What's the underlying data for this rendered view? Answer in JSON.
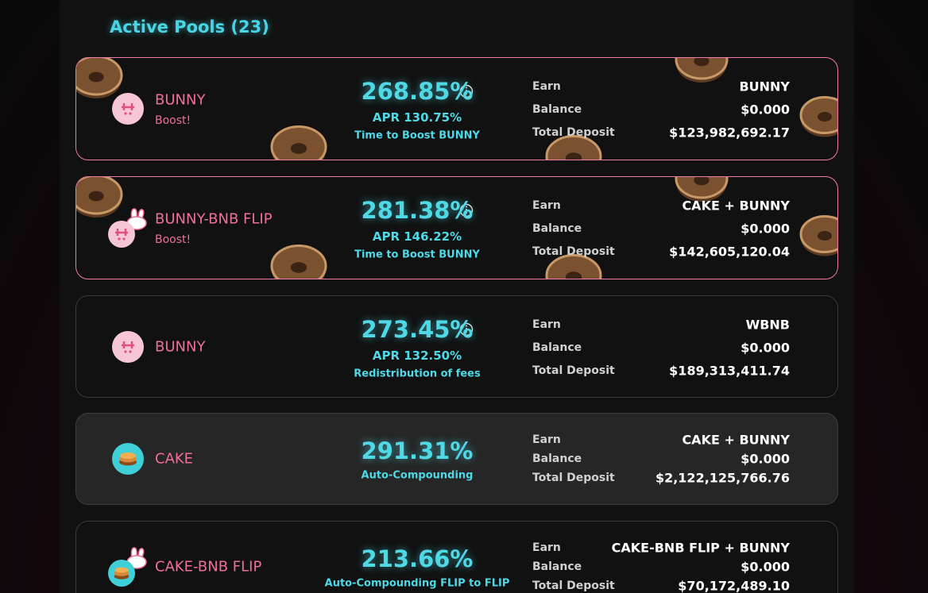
{
  "header": {
    "title": "Active Pools (23)"
  },
  "pools": [
    {
      "name": "BUNNY",
      "tag": "Boost!",
      "apy": "268.85%",
      "apr": "APR 130.75%",
      "note": "Time to Boost BUNNY",
      "earn_label": "Earn",
      "earn": "BUNNY",
      "balance_label": "Balance",
      "balance": "$0.000",
      "deposit_label": "Total Deposit",
      "deposit": "$123,982,692.17"
    },
    {
      "name": "BUNNY-BNB FLIP",
      "tag": "Boost!",
      "apy": "281.38%",
      "apr": "APR 146.22%",
      "note": "Time to Boost BUNNY",
      "earn_label": "Earn",
      "earn": "CAKE + BUNNY",
      "balance_label": "Balance",
      "balance": "$0.000",
      "deposit_label": "Total Deposit",
      "deposit": "$142,605,120.04"
    },
    {
      "name": "BUNNY",
      "apy": "273.45%",
      "apr": "APR 132.50%",
      "note": "Redistribution of fees",
      "earn_label": "Earn",
      "earn": "WBNB",
      "balance_label": "Balance",
      "balance": "$0.000",
      "deposit_label": "Total Deposit",
      "deposit": "$189,313,411.74"
    },
    {
      "name": "CAKE",
      "apy": "291.31%",
      "note": "Auto-Compounding",
      "earn_label": "Earn",
      "earn": "CAKE + BUNNY",
      "balance_label": "Balance",
      "balance": "$0.000",
      "deposit_label": "Total Deposit",
      "deposit": "$2,122,125,766.76"
    },
    {
      "name": "CAKE-BNB FLIP",
      "apy": "213.66%",
      "note": "Auto-Compounding FLIP to FLIP",
      "earn_label": "Earn",
      "earn": "CAKE-BNB FLIP + BUNNY",
      "balance_label": "Balance",
      "balance": "$0.000",
      "deposit_label": "Total Deposit",
      "deposit": "$70,172,489.10"
    }
  ]
}
